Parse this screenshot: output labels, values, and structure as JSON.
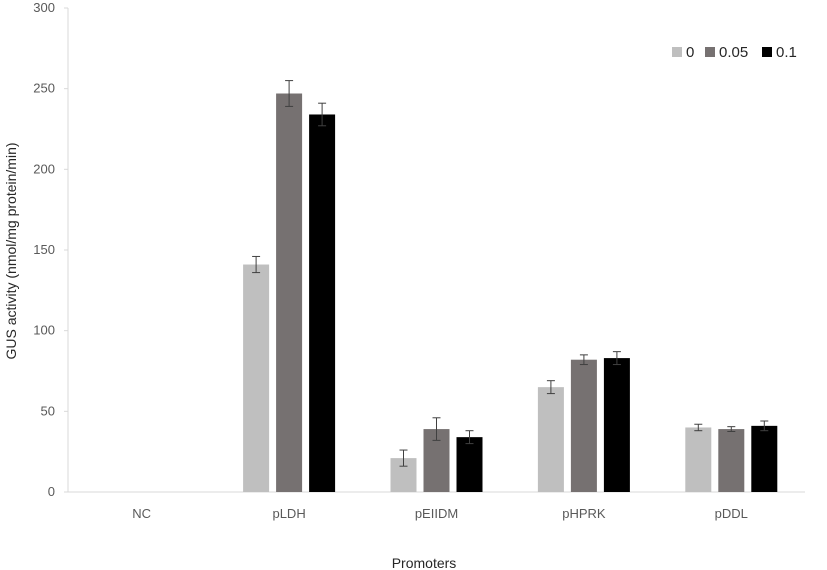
{
  "chart_data": {
    "type": "bar",
    "title": "",
    "xlabel": "Promoters",
    "ylabel": "GUS activity (nmol/mg protein/min)",
    "ylim": [
      0,
      300
    ],
    "yticks": [
      0,
      50,
      100,
      150,
      200,
      250,
      300
    ],
    "grid": false,
    "legend_position": "top-right",
    "categories": [
      "NC",
      "pLDH",
      "pEIIDM",
      "pHPRK",
      "pDDL"
    ],
    "series": [
      {
        "name": "0",
        "color": "#bfbfbf",
        "values": [
          0,
          141,
          21,
          65,
          40
        ],
        "errors": [
          0,
          5,
          5,
          4,
          2
        ]
      },
      {
        "name": "0.05",
        "color": "#767171",
        "values": [
          0,
          247,
          39,
          82,
          39
        ],
        "errors": [
          0,
          8,
          7,
          3,
          1.5
        ]
      },
      {
        "name": "0.1",
        "color": "#000000",
        "values": [
          0,
          234,
          34,
          83,
          41
        ],
        "errors": [
          0,
          7,
          4,
          4,
          3
        ]
      }
    ]
  }
}
